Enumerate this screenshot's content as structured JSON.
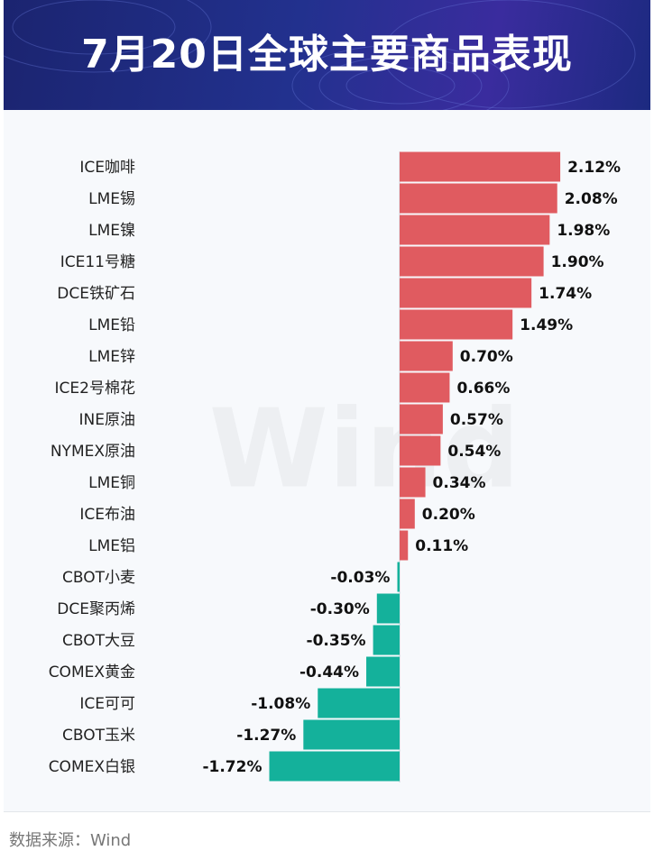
{
  "header": {
    "title": "7月20日全球主要商品表现"
  },
  "chart_data": {
    "type": "bar",
    "orientation": "horizontal",
    "categories": [
      "ICE咖啡",
      "LME锡",
      "LME镍",
      "ICE11号糖",
      "DCE铁矿石",
      "LME铅",
      "LME锌",
      "ICE2号棉花",
      "INE原油",
      "NYMEX原油",
      "LME铜",
      "ICE布油",
      "LME铝",
      "CBOT小麦",
      "DCE聚丙烯",
      "CBOT大豆",
      "COMEX黄金",
      "ICE可可",
      "CBOT玉米",
      "COMEX白银"
    ],
    "values": [
      2.12,
      2.08,
      1.98,
      1.9,
      1.74,
      1.49,
      0.7,
      0.66,
      0.57,
      0.54,
      0.34,
      0.2,
      0.11,
      -0.03,
      -0.3,
      -0.35,
      -0.44,
      -1.08,
      -1.27,
      -1.72
    ],
    "value_labels": [
      "2.12%",
      "2.08%",
      "1.98%",
      "1.90%",
      "1.74%",
      "1.49%",
      "0.70%",
      "0.66%",
      "0.57%",
      "0.54%",
      "0.34%",
      "0.20%",
      "0.11%",
      "-0.03%",
      "-0.30%",
      "-0.35%",
      "-0.44%",
      "-1.08%",
      "-1.27%",
      "-1.72%"
    ],
    "positive_color": "#e05b60",
    "negative_color": "#14b19b"
  },
  "watermark": "Wind",
  "source": "数据来源：Wind"
}
